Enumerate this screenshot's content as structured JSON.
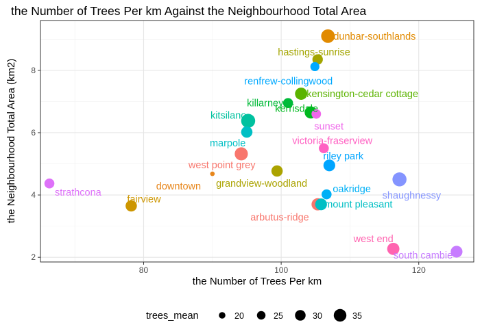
{
  "chart_data": {
    "type": "scatter",
    "title": "the Number of Trees Per km Against the Neighbourhood Total Area",
    "xlabel": "the Number of Trees Per km",
    "ylabel": "the Neighbourhood Total Area (km2)",
    "xlim": [
      65,
      128
    ],
    "ylim": [
      1.85,
      9.6
    ],
    "x_ticks": [
      80,
      100,
      120
    ],
    "y_ticks": [
      2,
      4,
      6,
      8
    ],
    "grid": true,
    "legend": {
      "title": "trees_mean",
      "position": "bottom",
      "entries": [
        {
          "label": "20",
          "size": 20
        },
        {
          "label": "25",
          "size": 25
        },
        {
          "label": "30",
          "size": 30
        },
        {
          "label": "35",
          "size": 35
        }
      ]
    },
    "points": [
      {
        "name": "dunbar-southlands",
        "x": 106.8,
        "y": 9.1,
        "size": 34,
        "color": "#E18A00"
      },
      {
        "name": "hastings-sunrise",
        "x": 105.3,
        "y": 8.35,
        "size": 27,
        "color": "#A3A500"
      },
      {
        "name": "renfrew-collingwood",
        "x": 104.9,
        "y": 8.12,
        "size": 24,
        "color": "#00A9FF"
      },
      {
        "name": "kensington-cedar cottage",
        "x": 102.9,
        "y": 7.25,
        "size": 31,
        "color": "#5BB300"
      },
      {
        "name": "killarney",
        "x": 101.0,
        "y": 6.95,
        "size": 26,
        "color": "#00BA38"
      },
      {
        "name": "kerrisdale",
        "x": 104.3,
        "y": 6.65,
        "size": 31,
        "color": "#00B81F"
      },
      {
        "name": "sunset",
        "x": 105.1,
        "y": 6.6,
        "size": 25,
        "color": "#EF67EB"
      },
      {
        "name": "kitsilano",
        "x": 95.2,
        "y": 6.38,
        "size": 35,
        "color": "#00C19F"
      },
      {
        "name": "marpole",
        "x": 95.0,
        "y": 6.02,
        "size": 29,
        "color": "#00BFC4"
      },
      {
        "name": "victoria-fraserview",
        "x": 106.2,
        "y": 5.5,
        "size": 26,
        "color": "#FF61C3"
      },
      {
        "name": "west point grey",
        "x": 94.2,
        "y": 5.32,
        "size": 33,
        "color": "#F8766D"
      },
      {
        "name": "riley park",
        "x": 107.0,
        "y": 4.95,
        "size": 30,
        "color": "#00A5FF"
      },
      {
        "name": "grandview-woodland",
        "x": 99.4,
        "y": 4.77,
        "size": 29,
        "color": "#ABA300"
      },
      {
        "name": "downtown",
        "x": 90.0,
        "y": 4.68,
        "size": 14,
        "color": "#E7861B"
      },
      {
        "name": "shaughnessy",
        "x": 117.2,
        "y": 4.5,
        "size": 35,
        "color": "#8494FF"
      },
      {
        "name": "strathcona",
        "x": 66.3,
        "y": 4.37,
        "size": 26,
        "color": "#DE71F9"
      },
      {
        "name": "oakridge",
        "x": 106.6,
        "y": 4.02,
        "size": 26,
        "color": "#00B0F6"
      },
      {
        "name": "arbutus-ridge",
        "x": 105.3,
        "y": 3.7,
        "size": 31,
        "color": "#F8766D"
      },
      {
        "name": "mount pleasant",
        "x": 105.8,
        "y": 3.7,
        "size": 30,
        "color": "#00BFC4"
      },
      {
        "name": "fairview",
        "x": 78.2,
        "y": 3.65,
        "size": 29,
        "color": "#CD9600"
      },
      {
        "name": "west end",
        "x": 116.3,
        "y": 2.27,
        "size": 31,
        "color": "#FF64B0"
      },
      {
        "name": "south cambie",
        "x": 125.5,
        "y": 2.18,
        "size": 30,
        "color": "#C77CFF"
      }
    ]
  }
}
